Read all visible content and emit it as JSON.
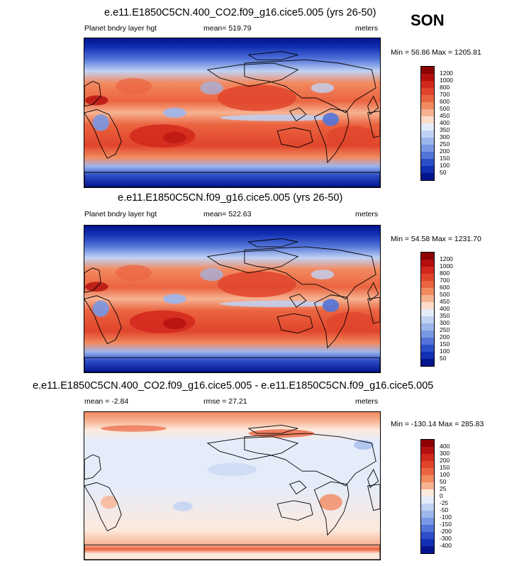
{
  "season": "SON",
  "panels": [
    {
      "title": "e.e11.E1850C5CN.400_CO2.f09_g16.cice5.005 (yrs 26-50)",
      "left_label": "Planet bndry layer hgt",
      "center_label": "mean= 519.79",
      "units": "meters",
      "minmax": "Min =  56.86 Max = 1205.81",
      "levels": [
        "1200",
        "1000",
        "800",
        "700",
        "600",
        "500",
        "450",
        "400",
        "350",
        "300",
        "250",
        "200",
        "150",
        "100",
        "50"
      ],
      "colors": [
        "#8b0000",
        "#b40f0f",
        "#d2281c",
        "#e0452c",
        "#eb6440",
        "#f28a60",
        "#f6b392",
        "#fcdcc8",
        "#e4ecfa",
        "#c0d2f4",
        "#9cb6ec",
        "#7898e4",
        "#5274d8",
        "#2c4ec8",
        "#1230b4",
        "#04148c"
      ]
    },
    {
      "title": "e.e11.E1850C5CN.f09_g16.cice5.005 (yrs 26-50)",
      "left_label": "Planet bndry layer hgt",
      "center_label": "mean= 522.63",
      "units": "meters",
      "minmax": "Min =  54.58 Max = 1231.70",
      "levels": [
        "1200",
        "1000",
        "800",
        "700",
        "600",
        "500",
        "450",
        "400",
        "350",
        "300",
        "250",
        "200",
        "150",
        "100",
        "50"
      ],
      "colors": [
        "#8b0000",
        "#b40f0f",
        "#d2281c",
        "#e0452c",
        "#eb6440",
        "#f28a60",
        "#f6b392",
        "#fcdcc8",
        "#e4ecfa",
        "#c0d2f4",
        "#9cb6ec",
        "#7898e4",
        "#5274d8",
        "#2c4ec8",
        "#1230b4",
        "#04148c"
      ]
    },
    {
      "title": "e.e11.E1850C5CN.400_CO2.f09_g16.cice5.005 - e.e11.E1850C5CN.f09_g16.cice5.005",
      "left_label": "mean =  -2.84",
      "center_label": "rmse =  27.21",
      "units": "meters",
      "minmax": "Min = -130.14 Max = 285.83",
      "levels": [
        "400",
        "300",
        "200",
        "150",
        "100",
        "50",
        "25",
        "0",
        "-25",
        "-50",
        "-100",
        "-150",
        "-200",
        "-300",
        "-400"
      ],
      "colors": [
        "#8b0000",
        "#b40f0f",
        "#d2281c",
        "#e0452c",
        "#eb6440",
        "#f28a60",
        "#f6b392",
        "#fde9dc",
        "#e4ecfa",
        "#c0d2f4",
        "#9cb6ec",
        "#7898e4",
        "#5274d8",
        "#2c4ec8",
        "#1230b4",
        "#04148c"
      ]
    }
  ],
  "chart_data": [
    {
      "type": "heatmap",
      "title": "e.e11.E1850C5CN.400_CO2.f09_g16.cice5.005 (yrs 26-50)",
      "variable": "Planet bndry layer hgt",
      "mean": 519.79,
      "min": 56.86,
      "max": 1205.81,
      "units": "meters",
      "contour_levels": [
        50,
        100,
        150,
        200,
        250,
        300,
        350,
        400,
        450,
        500,
        600,
        700,
        800,
        1000,
        1200
      ]
    },
    {
      "type": "heatmap",
      "title": "e.e11.E1850C5CN.f09_g16.cice5.005 (yrs 26-50)",
      "variable": "Planet bndry layer hgt",
      "mean": 522.63,
      "min": 54.58,
      "max": 1231.7,
      "units": "meters",
      "contour_levels": [
        50,
        100,
        150,
        200,
        250,
        300,
        350,
        400,
        450,
        500,
        600,
        700,
        800,
        1000,
        1200
      ]
    },
    {
      "type": "heatmap",
      "title": "e.e11.E1850C5CN.400_CO2.f09_g16.cice5.005 - e.e11.E1850C5CN.f09_g16.cice5.005",
      "mean": -2.84,
      "rmse": 27.21,
      "min": -130.14,
      "max": 285.83,
      "units": "meters",
      "contour_levels": [
        -400,
        -300,
        -200,
        -150,
        -100,
        -50,
        -25,
        0,
        25,
        50,
        100,
        150,
        200,
        300,
        400
      ]
    }
  ]
}
